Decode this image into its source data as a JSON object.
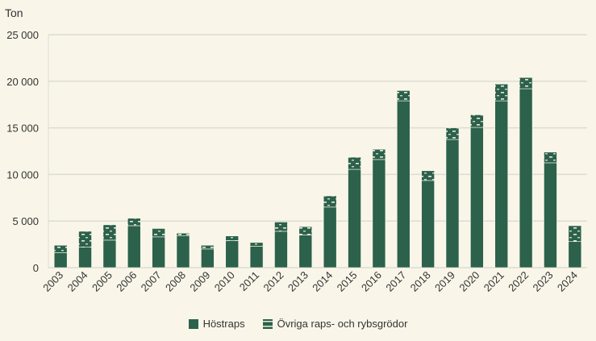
{
  "chart_data": {
    "type": "bar",
    "stacked": true,
    "ylabel": "Ton",
    "ylim": [
      0,
      25000
    ],
    "yticks": [
      0,
      5000,
      10000,
      15000,
      20000,
      25000
    ],
    "ytick_labels": [
      "0",
      "5 000",
      "10 000",
      "15 000",
      "20 000",
      "25 000"
    ],
    "categories": [
      "2003",
      "2004",
      "2005",
      "2006",
      "2007",
      "2008",
      "2009",
      "2010",
      "2011",
      "2012",
      "2013",
      "2014",
      "2015",
      "2016",
      "2017",
      "2018",
      "2019",
      "2020",
      "2021",
      "2022",
      "2023",
      "2024"
    ],
    "series": [
      {
        "name": "Höstraps",
        "color": "#2c614b",
        "pattern": "solid",
        "values": [
          1600,
          2200,
          2950,
          4500,
          3300,
          3400,
          2000,
          2900,
          2300,
          3900,
          3500,
          6500,
          10550,
          11600,
          17900,
          9350,
          13750,
          15050,
          17900,
          19200,
          11250,
          2800
        ]
      },
      {
        "name": "Övriga raps- och rybsgrödor",
        "color": "#2c614b",
        "pattern": "dashed",
        "values": [
          800,
          1700,
          1650,
          800,
          900,
          300,
          400,
          500,
          400,
          1000,
          900,
          1200,
          1300,
          1100,
          1100,
          1050,
          1250,
          1350,
          1800,
          1200,
          1150,
          1700
        ]
      }
    ],
    "grid": true,
    "legend": "bottom"
  }
}
